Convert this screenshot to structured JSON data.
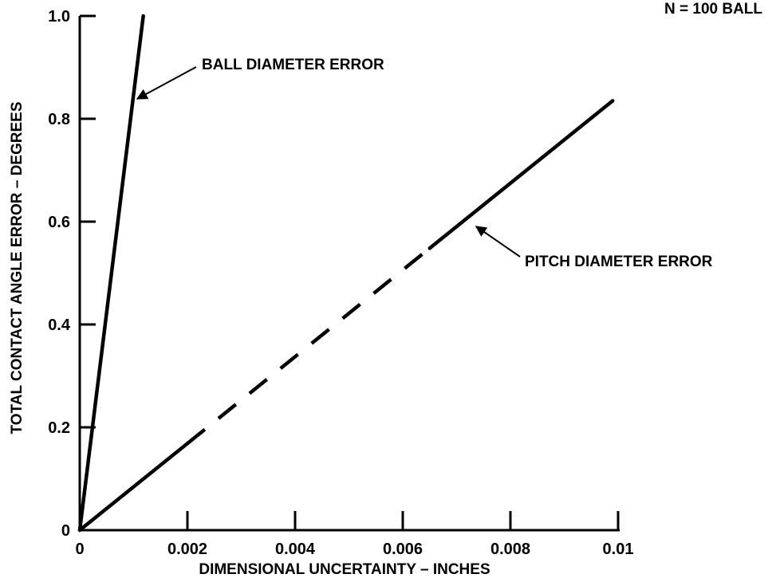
{
  "chart_data": {
    "type": "line",
    "title": "",
    "corner_note": "N = 100 BALL",
    "xlabel": "DIMENSIONAL UNCERTAINTY – INCHES",
    "ylabel": "TOTAL CONTACT ANGLE ERROR – DEGREES",
    "xlim": [
      0,
      0.01
    ],
    "ylim": [
      0,
      1.0
    ],
    "x_ticks": [
      0,
      0.002,
      0.004,
      0.006,
      0.008,
      0.01
    ],
    "x_tick_labels": [
      "0",
      "0.002",
      "0.004",
      "0.006",
      "0.008",
      "0.01"
    ],
    "y_ticks": [
      0,
      0.2,
      0.4,
      0.6,
      0.8,
      1.0
    ],
    "y_tick_labels": [
      "0",
      "0.2",
      "0.4",
      "0.6",
      "0.8",
      "1.0"
    ],
    "grid": false,
    "series": [
      {
        "name": "BALL DIAMETER ERROR",
        "x": [
          0,
          0.00118
        ],
        "y": [
          0,
          1.0
        ],
        "style": "solid"
      },
      {
        "name": "PITCH DIAMETER ERROR",
        "x": [
          0,
          0.0099
        ],
        "y": [
          0,
          0.835
        ],
        "style": "partly-dashed",
        "dashed_x_range": [
          0.002,
          0.0065
        ]
      }
    ],
    "annotations": [
      {
        "text": "BALL DIAMETER ERROR",
        "points_to_series": 0,
        "at_x": 0.00105,
        "at_y": 0.89
      },
      {
        "text": "PITCH DIAMETER ERROR",
        "points_to_series": 1,
        "at_x": 0.0073,
        "at_y": 0.61
      }
    ]
  }
}
